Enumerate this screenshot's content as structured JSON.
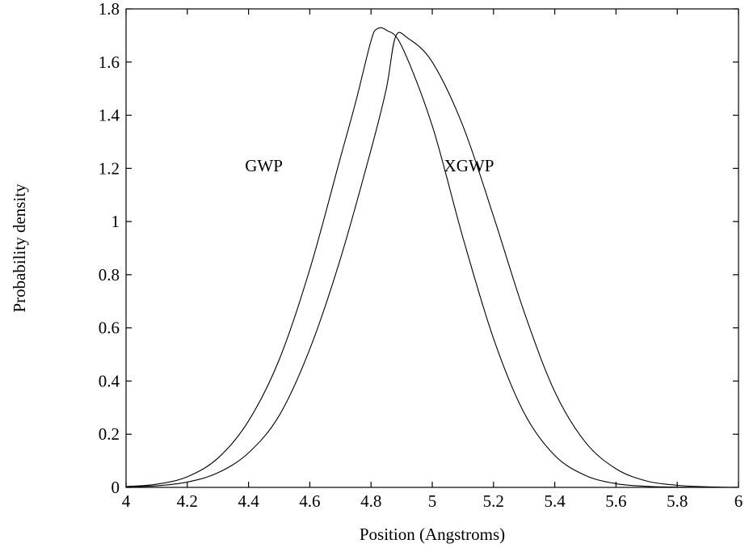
{
  "chart_data": {
    "type": "line",
    "title": "",
    "xlabel": "Position (Angstroms)",
    "ylabel": "Probability density",
    "xlim": [
      4,
      6
    ],
    "ylim": [
      0,
      1.8
    ],
    "xticks": [
      "4",
      "4.2",
      "4.4",
      "4.6",
      "4.8",
      "5",
      "5.2",
      "5.4",
      "5.6",
      "5.8",
      "6"
    ],
    "yticks": [
      "0",
      "0.2",
      "0.4",
      "0.6",
      "0.8",
      "1",
      "1.2",
      "1.4",
      "1.6",
      "1.8"
    ],
    "grid": false,
    "legend": "none",
    "series": [
      {
        "name": "GWP",
        "label_at": {
          "x": 4.45,
          "y": 1.21
        },
        "points": [
          [
            4.0,
            0.003
          ],
          [
            4.1,
            0.012
          ],
          [
            4.2,
            0.04
          ],
          [
            4.3,
            0.11
          ],
          [
            4.4,
            0.25
          ],
          [
            4.5,
            0.48
          ],
          [
            4.6,
            0.82
          ],
          [
            4.7,
            1.24
          ],
          [
            4.75,
            1.45
          ],
          [
            4.8,
            1.68
          ],
          [
            4.82,
            1.725
          ],
          [
            4.85,
            1.72
          ],
          [
            4.9,
            1.66
          ],
          [
            5.0,
            1.36
          ],
          [
            5.1,
            0.94
          ],
          [
            5.2,
            0.56
          ],
          [
            5.3,
            0.28
          ],
          [
            5.4,
            0.12
          ],
          [
            5.5,
            0.045
          ],
          [
            5.6,
            0.014
          ],
          [
            5.7,
            0.004
          ],
          [
            5.8,
            0.001
          ],
          [
            6.0,
            0.0
          ]
        ]
      },
      {
        "name": "XGWP",
        "label_at": {
          "x": 5.12,
          "y": 1.21
        },
        "points": [
          [
            4.0,
            0.002
          ],
          [
            4.1,
            0.006
          ],
          [
            4.2,
            0.02
          ],
          [
            4.3,
            0.055
          ],
          [
            4.4,
            0.13
          ],
          [
            4.5,
            0.27
          ],
          [
            4.6,
            0.52
          ],
          [
            4.7,
            0.86
          ],
          [
            4.8,
            1.27
          ],
          [
            4.85,
            1.5
          ],
          [
            4.88,
            1.695
          ],
          [
            4.92,
            1.69
          ],
          [
            5.0,
            1.6
          ],
          [
            5.1,
            1.36
          ],
          [
            5.2,
            1.02
          ],
          [
            5.3,
            0.66
          ],
          [
            5.4,
            0.36
          ],
          [
            5.5,
            0.17
          ],
          [
            5.6,
            0.07
          ],
          [
            5.7,
            0.024
          ],
          [
            5.8,
            0.008
          ],
          [
            5.9,
            0.002
          ],
          [
            6.0,
            0.0
          ]
        ]
      }
    ]
  }
}
